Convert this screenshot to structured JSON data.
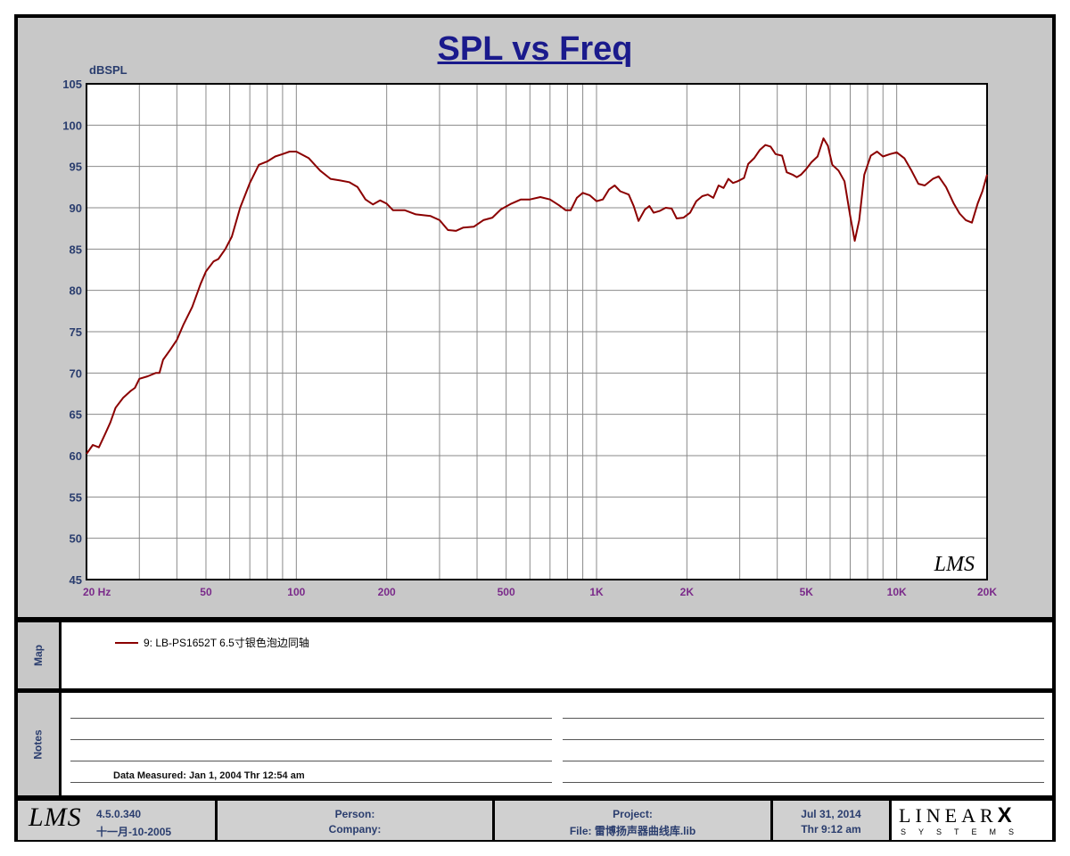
{
  "title": "SPL vs Freq",
  "footer": {
    "version": "4.5.0.340",
    "build_date": "十一月-10-2005",
    "person_label": "Person:",
    "company_label": "Company:",
    "project_label": "Project:",
    "file_label": "File: 雷博扬声器曲线库.lib",
    "date": "Jul 31, 2014",
    "time": "Thr  9:12 am",
    "lms_logo": "LMS",
    "linearx_top": "LINEAR",
    "linearx_x": "X",
    "linearx_bottom": "SYSTEMS"
  },
  "panels": {
    "map_label": "Map",
    "notes_label": "Notes",
    "data_measured": "Data Measured: Jan  1, 2004  Thr 12:54 am"
  },
  "colors": {
    "curve": "#8b0000",
    "axis_text": "#2a3d6e",
    "x_tick_text": "#7a2a8a",
    "title": "#1a1a8c",
    "background": "#c8c8c8"
  },
  "chart_data": {
    "type": "line",
    "title": "SPL vs Freq",
    "ylabel": "dBSPL",
    "xlabel": "",
    "xscale": "log",
    "xlim": [
      20,
      20000
    ],
    "ylim": [
      45,
      105
    ],
    "y_ticks": [
      45,
      50,
      55,
      60,
      65,
      70,
      75,
      80,
      85,
      90,
      95,
      100,
      105
    ],
    "x_tick_labels": [
      {
        "value": 20,
        "label": "20  Hz"
      },
      {
        "value": 50,
        "label": "50"
      },
      {
        "value": 100,
        "label": "100"
      },
      {
        "value": 200,
        "label": "200"
      },
      {
        "value": 500,
        "label": "500"
      },
      {
        "value": 1000,
        "label": "1K"
      },
      {
        "value": 2000,
        "label": "2K"
      },
      {
        "value": 5000,
        "label": "5K"
      },
      {
        "value": 10000,
        "label": "10K"
      },
      {
        "value": 20000,
        "label": "20K"
      }
    ],
    "grid": true,
    "watermark": "LMS",
    "legend_position": "map panel below chart",
    "series": [
      {
        "name": "9: LB-PS1652T 6.5寸银色泡边同轴",
        "color": "#8b0000",
        "points": [
          [
            20,
            60.2
          ],
          [
            21,
            61.3
          ],
          [
            22,
            61.0
          ],
          [
            23,
            62.5
          ],
          [
            24,
            64.0
          ],
          [
            25,
            65.8
          ],
          [
            26.5,
            67.0
          ],
          [
            28,
            67.8
          ],
          [
            29,
            68.2
          ],
          [
            30,
            69.3
          ],
          [
            32,
            69.6
          ],
          [
            34,
            70.0
          ],
          [
            35,
            70.0
          ],
          [
            36,
            71.6
          ],
          [
            38,
            72.8
          ],
          [
            40,
            74.0
          ],
          [
            42,
            75.8
          ],
          [
            45,
            78.0
          ],
          [
            48,
            80.8
          ],
          [
            50,
            82.3
          ],
          [
            53,
            83.5
          ],
          [
            55,
            83.8
          ],
          [
            58,
            85.0
          ],
          [
            61,
            86.5
          ],
          [
            65,
            90.0
          ],
          [
            70,
            93.0
          ],
          [
            75,
            95.2
          ],
          [
            80,
            95.6
          ],
          [
            85,
            96.2
          ],
          [
            90,
            96.5
          ],
          [
            95,
            96.8
          ],
          [
            100,
            96.8
          ],
          [
            110,
            96.0
          ],
          [
            120,
            94.5
          ],
          [
            130,
            93.5
          ],
          [
            140,
            93.3
          ],
          [
            150,
            93.1
          ],
          [
            160,
            92.5
          ],
          [
            170,
            91.0
          ],
          [
            180,
            90.4
          ],
          [
            190,
            90.9
          ],
          [
            200,
            90.5
          ],
          [
            210,
            89.7
          ],
          [
            230,
            89.7
          ],
          [
            250,
            89.2
          ],
          [
            280,
            89.0
          ],
          [
            300,
            88.5
          ],
          [
            320,
            87.3
          ],
          [
            340,
            87.2
          ],
          [
            360,
            87.6
          ],
          [
            390,
            87.7
          ],
          [
            420,
            88.5
          ],
          [
            450,
            88.8
          ],
          [
            480,
            89.8
          ],
          [
            520,
            90.5
          ],
          [
            560,
            91.0
          ],
          [
            600,
            91.0
          ],
          [
            650,
            91.3
          ],
          [
            700,
            91.0
          ],
          [
            750,
            90.3
          ],
          [
            790,
            89.7
          ],
          [
            820,
            89.7
          ],
          [
            860,
            91.2
          ],
          [
            900,
            91.8
          ],
          [
            950,
            91.5
          ],
          [
            1000,
            90.8
          ],
          [
            1050,
            91.0
          ],
          [
            1100,
            92.2
          ],
          [
            1150,
            92.7
          ],
          [
            1200,
            92.0
          ],
          [
            1280,
            91.6
          ],
          [
            1330,
            90.2
          ],
          [
            1380,
            88.4
          ],
          [
            1450,
            89.8
          ],
          [
            1500,
            90.2
          ],
          [
            1550,
            89.4
          ],
          [
            1620,
            89.6
          ],
          [
            1700,
            90.0
          ],
          [
            1780,
            89.9
          ],
          [
            1850,
            88.7
          ],
          [
            1950,
            88.8
          ],
          [
            2050,
            89.4
          ],
          [
            2150,
            90.8
          ],
          [
            2250,
            91.4
          ],
          [
            2350,
            91.6
          ],
          [
            2450,
            91.2
          ],
          [
            2550,
            92.7
          ],
          [
            2650,
            92.4
          ],
          [
            2750,
            93.5
          ],
          [
            2850,
            93.0
          ],
          [
            2950,
            93.2
          ],
          [
            3100,
            93.6
          ],
          [
            3200,
            95.3
          ],
          [
            3350,
            96.0
          ],
          [
            3500,
            97.0
          ],
          [
            3650,
            97.6
          ],
          [
            3800,
            97.4
          ],
          [
            3950,
            96.5
          ],
          [
            4150,
            96.3
          ],
          [
            4300,
            94.3
          ],
          [
            4500,
            94.0
          ],
          [
            4650,
            93.7
          ],
          [
            4800,
            94.0
          ],
          [
            5000,
            94.7
          ],
          [
            5200,
            95.5
          ],
          [
            5450,
            96.2
          ],
          [
            5700,
            98.4
          ],
          [
            5900,
            97.5
          ],
          [
            6100,
            95.2
          ],
          [
            6400,
            94.5
          ],
          [
            6700,
            93.2
          ],
          [
            7000,
            89.0
          ],
          [
            7250,
            86.0
          ],
          [
            7500,
            88.5
          ],
          [
            7800,
            94.0
          ],
          [
            8200,
            96.3
          ],
          [
            8600,
            96.8
          ],
          [
            9000,
            96.2
          ],
          [
            9500,
            96.5
          ],
          [
            10000,
            96.7
          ],
          [
            10600,
            96.0
          ],
          [
            11200,
            94.5
          ],
          [
            11800,
            92.9
          ],
          [
            12400,
            92.7
          ],
          [
            13200,
            93.5
          ],
          [
            13800,
            93.8
          ],
          [
            14600,
            92.5
          ],
          [
            15500,
            90.5
          ],
          [
            16200,
            89.3
          ],
          [
            17000,
            88.5
          ],
          [
            17800,
            88.2
          ],
          [
            18600,
            90.5
          ],
          [
            19300,
            92.0
          ],
          [
            20000,
            94.0
          ]
        ]
      }
    ]
  }
}
